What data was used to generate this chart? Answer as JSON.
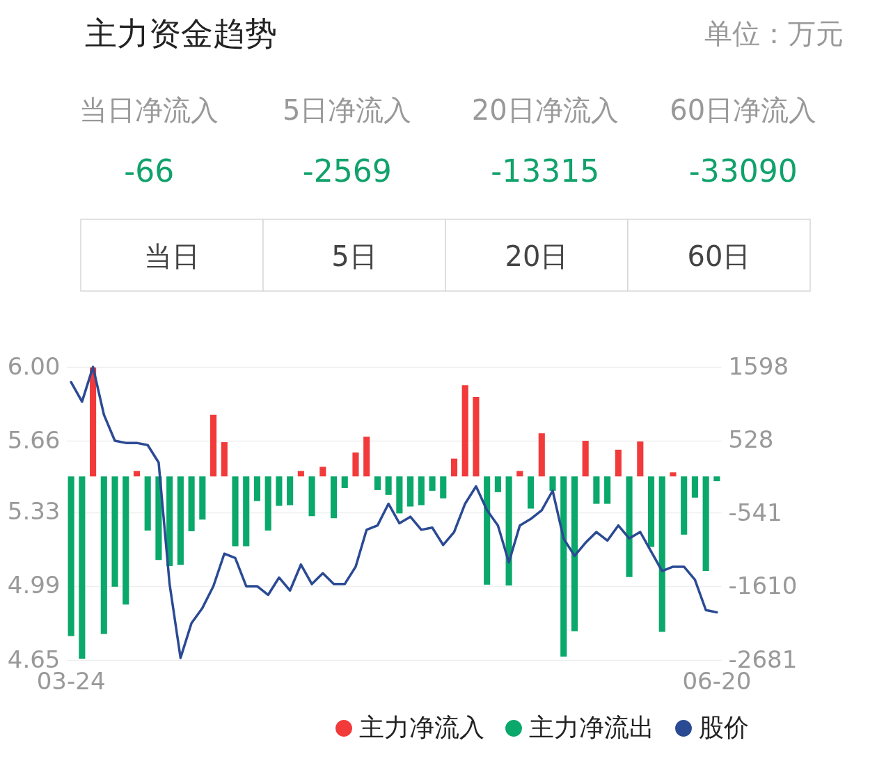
{
  "chart_data": [
    {
      "type": "other",
      "title": "主力资金趋势",
      "subtitle": "单位：万元",
      "categories": [
        "当日净流入",
        "5日净流入",
        "20日净流入",
        "60日净流入"
      ],
      "values": [
        -66,
        -2569,
        -13315,
        -33090
      ],
      "color": "#11a26b",
      "data_labels": true,
      "annotations": [
        "当日",
        "5日",
        "20日",
        "60日"
      ]
    },
    {
      "type": "bar",
      "categories": [
        "03-24",
        null,
        null,
        null,
        null,
        null,
        null,
        null,
        null,
        null,
        null,
        null,
        null,
        null,
        null,
        null,
        null,
        null,
        null,
        null,
        null,
        null,
        null,
        null,
        null,
        null,
        null,
        null,
        null,
        null,
        null,
        null,
        null,
        null,
        null,
        null,
        null,
        null,
        null,
        null,
        null,
        null,
        null,
        null,
        null,
        null,
        null,
        null,
        null,
        null,
        null,
        null,
        null,
        null,
        null,
        null,
        null,
        null,
        null,
        "06-20"
      ],
      "series": [
        {
          "name": "主力净流入",
          "color": "#f23a3a",
          "axis": "y2",
          "values": [
            null,
            null,
            1590,
            null,
            null,
            null,
            80,
            null,
            null,
            null,
            null,
            null,
            null,
            900,
            500,
            null,
            null,
            null,
            null,
            null,
            null,
            80,
            null,
            140,
            null,
            null,
            350,
            580,
            null,
            null,
            null,
            null,
            null,
            null,
            null,
            260,
            1330,
            1160,
            null,
            null,
            null,
            80,
            null,
            630,
            null,
            null,
            null,
            520,
            null,
            null,
            390,
            null,
            510,
            null,
            null,
            60,
            null,
            null,
            null,
            null
          ]
        },
        {
          "name": "主力净流出",
          "color": "#0aa86b",
          "axis": "y2",
          "values": [
            -2330,
            -2660,
            null,
            -2300,
            -1610,
            -1870,
            null,
            -790,
            -1220,
            -1310,
            -1290,
            -800,
            -630,
            null,
            null,
            -1020,
            -1020,
            -360,
            -790,
            -430,
            -420,
            null,
            -580,
            null,
            -610,
            -170,
            null,
            null,
            -200,
            -270,
            -540,
            -440,
            -420,
            -210,
            -320,
            null,
            null,
            null,
            -1580,
            -230,
            -1590,
            null,
            -470,
            null,
            -210,
            -2630,
            -2260,
            null,
            -400,
            -400,
            null,
            -1470,
            null,
            -1030,
            -2270,
            null,
            -850,
            -310,
            -1380,
            -70
          ]
        },
        {
          "name": "股价",
          "type": "line",
          "color": "#2b4a94",
          "axis": "y",
          "values": [
            5.93,
            5.84,
            6.0,
            5.78,
            5.66,
            5.65,
            5.65,
            5.64,
            5.56,
            5.0,
            4.66,
            4.82,
            4.89,
            4.99,
            5.14,
            5.12,
            4.99,
            4.99,
            4.95,
            5.03,
            4.97,
            5.09,
            5.0,
            5.05,
            5.0,
            5.0,
            5.08,
            5.25,
            5.27,
            5.37,
            5.28,
            5.31,
            5.25,
            5.26,
            5.18,
            5.24,
            5.37,
            5.45,
            5.34,
            5.27,
            5.1,
            5.27,
            5.3,
            5.34,
            5.43,
            5.21,
            5.13,
            5.19,
            5.24,
            5.2,
            5.27,
            5.21,
            5.24,
            5.15,
            5.06,
            5.08,
            5.08,
            5.02,
            4.88,
            4.87
          ]
        }
      ],
      "ylim": [
        4.65,
        6.0
      ],
      "yticks": [
        4.65,
        4.99,
        5.33,
        5.66,
        {
          "value": 6.0,
          "label": "6.00"
        }
      ],
      "y2lim": [
        -2681,
        1598
      ],
      "y2ticks": [
        -2681,
        -1610,
        -541,
        528,
        1598
      ],
      "grid": "y",
      "legend": "bottom right"
    }
  ]
}
